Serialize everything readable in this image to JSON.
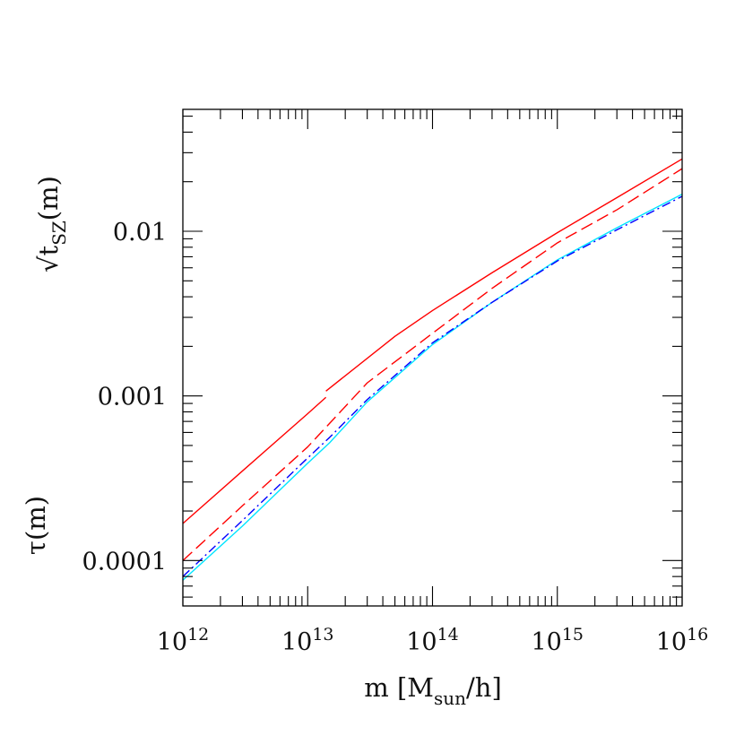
{
  "chart_data": {
    "type": "line",
    "xscale": "log",
    "yscale": "log",
    "xlim": [
      1000000000000.0,
      1e+16
    ],
    "ylim": [
      5.3e-05,
      0.055
    ],
    "xlabel": {
      "base": "m  [M",
      "sub": "sun",
      "tail": "/h]"
    },
    "ylabel_top": {
      "base": "√t",
      "sub": "SZ",
      "tail": "(m)"
    },
    "ylabel_bottom": "τ(m)",
    "x_ticks": [
      {
        "value": 1000000000000.0,
        "base": "10",
        "exp": "12"
      },
      {
        "value": 10000000000000.0,
        "base": "10",
        "exp": "13"
      },
      {
        "value": 100000000000000.0,
        "base": "10",
        "exp": "14"
      },
      {
        "value": 1000000000000000.0,
        "base": "10",
        "exp": "15"
      },
      {
        "value": 1e+16,
        "base": "10",
        "exp": "16"
      }
    ],
    "y_ticks": [
      {
        "value": 0.0001,
        "label": "0.0001"
      },
      {
        "value": 0.001,
        "label": "0.001"
      },
      {
        "value": 0.01,
        "label": "0.01"
      }
    ],
    "grid": false,
    "series": [
      {
        "color": "#ff0000",
        "style": "solid",
        "x": [
          1000000000000.0,
          3000000000000.0,
          10000000000000.0,
          14000000000000.0
        ],
        "y": [
          0.000168,
          0.00035,
          0.00078,
          0.00098
        ]
      },
      {
        "color": "#ff0000",
        "style": "solid",
        "x": [
          14000000000000.0,
          50000000000000.0,
          100000000000000.0,
          300000000000000.0,
          1000000000000000.0,
          3000000000000000.0,
          1e+16
        ],
        "y": [
          0.00107,
          0.0023,
          0.0033,
          0.0056,
          0.0098,
          0.016,
          0.0275
        ]
      },
      {
        "color": "#ff0000",
        "style": "dashed",
        "x": [
          1000000000000.0,
          3000000000000.0,
          10000000000000.0,
          30000000000000.0,
          100000000000000.0,
          300000000000000.0,
          1000000000000000.0,
          3000000000000000.0,
          1e+16
        ],
        "y": [
          0.0001,
          0.000215,
          0.00049,
          0.0012,
          0.0024,
          0.0045,
          0.0085,
          0.0135,
          0.024
        ]
      },
      {
        "color": "#00e5ff",
        "style": "solid",
        "x": [
          1000000000000.0,
          3000000000000.0,
          10000000000000.0,
          15000000000000.0,
          30000000000000.0,
          100000000000000.0,
          300000000000000.0,
          1000000000000000.0,
          3000000000000000.0,
          1e+16
        ],
        "y": [
          7.6e-05,
          0.000162,
          0.00039,
          0.00052,
          0.00092,
          0.00205,
          0.0037,
          0.0067,
          0.0105,
          0.0168
        ]
      },
      {
        "color": "#0000ff",
        "style": "dashdot",
        "x": [
          1000000000000.0,
          3000000000000.0,
          10000000000000.0,
          15000000000000.0,
          30000000000000.0,
          100000000000000.0,
          300000000000000.0,
          1000000000000000.0,
          3000000000000000.0,
          1e+16
        ],
        "y": [
          8e-05,
          0.000175,
          0.00042,
          0.00056,
          0.00095,
          0.0021,
          0.0037,
          0.0066,
          0.0102,
          0.0163
        ]
      }
    ]
  }
}
